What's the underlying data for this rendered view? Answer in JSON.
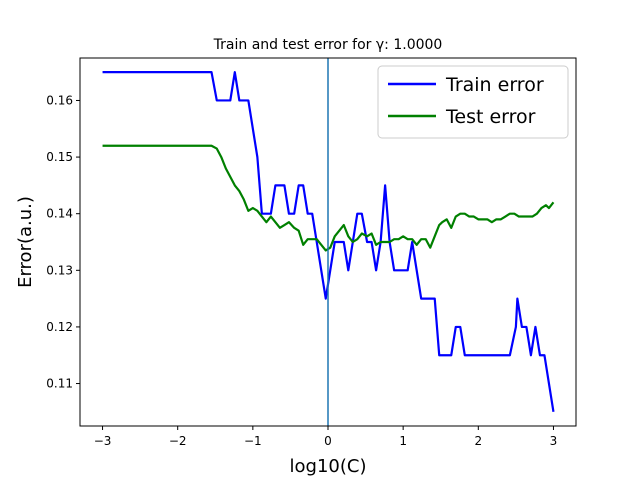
{
  "chart_data": {
    "type": "line",
    "title": "Train and test error for γ: 1.0000",
    "xlabel": "log10(C)",
    "ylabel": "Error(a.u.)",
    "xlim": [
      -3.3,
      3.3
    ],
    "ylim": [
      0.1025,
      0.1675
    ],
    "xticks": [
      -3,
      -2,
      -1,
      0,
      1,
      2,
      3
    ],
    "xtick_labels": [
      "−3",
      "−2",
      "−1",
      "0",
      "1",
      "2",
      "3"
    ],
    "yticks": [
      0.11,
      0.12,
      0.13,
      0.14,
      0.15,
      0.16
    ],
    "ytick_labels": [
      "0.11",
      "0.12",
      "0.13",
      "0.14",
      "0.15",
      "0.16"
    ],
    "legend_position": "top-right",
    "vline": {
      "x": 0,
      "color": "#1f77b4"
    },
    "series": [
      {
        "name": "Train error",
        "color": "#0000ff",
        "points": [
          [
            -3.0,
            0.165
          ],
          [
            -2.5,
            0.165
          ],
          [
            -2.0,
            0.165
          ],
          [
            -1.55,
            0.165
          ],
          [
            -1.48,
            0.16
          ],
          [
            -1.3,
            0.16
          ],
          [
            -1.24,
            0.165
          ],
          [
            -1.18,
            0.16
          ],
          [
            -1.06,
            0.16
          ],
          [
            -1.0,
            0.155
          ],
          [
            -0.94,
            0.15
          ],
          [
            -0.88,
            0.14
          ],
          [
            -0.76,
            0.14
          ],
          [
            -0.7,
            0.145
          ],
          [
            -0.58,
            0.145
          ],
          [
            -0.52,
            0.14
          ],
          [
            -0.45,
            0.14
          ],
          [
            -0.39,
            0.145
          ],
          [
            -0.33,
            0.145
          ],
          [
            -0.27,
            0.14
          ],
          [
            -0.21,
            0.14
          ],
          [
            -0.15,
            0.135
          ],
          [
            -0.09,
            0.13
          ],
          [
            -0.03,
            0.125
          ],
          [
            0.03,
            0.13
          ],
          [
            0.09,
            0.135
          ],
          [
            0.21,
            0.135
          ],
          [
            0.27,
            0.13
          ],
          [
            0.33,
            0.135
          ],
          [
            0.39,
            0.14
          ],
          [
            0.45,
            0.14
          ],
          [
            0.52,
            0.135
          ],
          [
            0.58,
            0.135
          ],
          [
            0.64,
            0.13
          ],
          [
            0.7,
            0.135
          ],
          [
            0.76,
            0.145
          ],
          [
            0.82,
            0.135
          ],
          [
            0.88,
            0.13
          ],
          [
            1.06,
            0.13
          ],
          [
            1.12,
            0.135
          ],
          [
            1.18,
            0.13
          ],
          [
            1.24,
            0.125
          ],
          [
            1.42,
            0.125
          ],
          [
            1.48,
            0.115
          ],
          [
            1.64,
            0.115
          ],
          [
            1.7,
            0.12
          ],
          [
            1.76,
            0.12
          ],
          [
            1.82,
            0.115
          ],
          [
            2.0,
            0.115
          ],
          [
            2.2,
            0.115
          ],
          [
            2.42,
            0.115
          ],
          [
            2.5,
            0.12
          ],
          [
            2.52,
            0.125
          ],
          [
            2.58,
            0.12
          ],
          [
            2.64,
            0.12
          ],
          [
            2.7,
            0.115
          ],
          [
            2.76,
            0.12
          ],
          [
            2.82,
            0.115
          ],
          [
            2.88,
            0.115
          ],
          [
            2.94,
            0.11
          ],
          [
            3.0,
            0.105
          ]
        ]
      },
      {
        "name": "Test error",
        "color": "#008000",
        "points": [
          [
            -3.0,
            0.152
          ],
          [
            -2.5,
            0.152
          ],
          [
            -2.0,
            0.152
          ],
          [
            -1.55,
            0.152
          ],
          [
            -1.48,
            0.1515
          ],
          [
            -1.42,
            0.15
          ],
          [
            -1.36,
            0.148
          ],
          [
            -1.3,
            0.1465
          ],
          [
            -1.24,
            0.145
          ],
          [
            -1.18,
            0.144
          ],
          [
            -1.12,
            0.1425
          ],
          [
            -1.06,
            0.1405
          ],
          [
            -1.0,
            0.141
          ],
          [
            -0.94,
            0.1405
          ],
          [
            -0.88,
            0.1395
          ],
          [
            -0.82,
            0.1385
          ],
          [
            -0.76,
            0.1395
          ],
          [
            -0.7,
            0.1385
          ],
          [
            -0.64,
            0.1375
          ],
          [
            -0.58,
            0.138
          ],
          [
            -0.52,
            0.1385
          ],
          [
            -0.45,
            0.1375
          ],
          [
            -0.39,
            0.137
          ],
          [
            -0.33,
            0.1345
          ],
          [
            -0.27,
            0.1355
          ],
          [
            -0.21,
            0.1355
          ],
          [
            -0.15,
            0.1355
          ],
          [
            -0.09,
            0.1345
          ],
          [
            -0.03,
            0.1335
          ],
          [
            0.03,
            0.134
          ],
          [
            0.09,
            0.136
          ],
          [
            0.15,
            0.137
          ],
          [
            0.21,
            0.138
          ],
          [
            0.27,
            0.136
          ],
          [
            0.33,
            0.135
          ],
          [
            0.39,
            0.1355
          ],
          [
            0.45,
            0.1365
          ],
          [
            0.52,
            0.136
          ],
          [
            0.58,
            0.1365
          ],
          [
            0.64,
            0.1345
          ],
          [
            0.7,
            0.135
          ],
          [
            0.76,
            0.135
          ],
          [
            0.82,
            0.135
          ],
          [
            0.88,
            0.1355
          ],
          [
            0.94,
            0.1355
          ],
          [
            1.0,
            0.136
          ],
          [
            1.06,
            0.1355
          ],
          [
            1.12,
            0.1355
          ],
          [
            1.18,
            0.1345
          ],
          [
            1.24,
            0.1355
          ],
          [
            1.3,
            0.1355
          ],
          [
            1.36,
            0.134
          ],
          [
            1.42,
            0.136
          ],
          [
            1.48,
            0.138
          ],
          [
            1.52,
            0.1385
          ],
          [
            1.58,
            0.139
          ],
          [
            1.64,
            0.1375
          ],
          [
            1.7,
            0.1395
          ],
          [
            1.76,
            0.14
          ],
          [
            1.82,
            0.14
          ],
          [
            1.88,
            0.1395
          ],
          [
            1.94,
            0.1395
          ],
          [
            2.0,
            0.139
          ],
          [
            2.06,
            0.139
          ],
          [
            2.12,
            0.139
          ],
          [
            2.18,
            0.1385
          ],
          [
            2.24,
            0.139
          ],
          [
            2.3,
            0.139
          ],
          [
            2.36,
            0.1395
          ],
          [
            2.42,
            0.14
          ],
          [
            2.48,
            0.14
          ],
          [
            2.54,
            0.1395
          ],
          [
            2.6,
            0.1395
          ],
          [
            2.66,
            0.1395
          ],
          [
            2.72,
            0.1395
          ],
          [
            2.78,
            0.14
          ],
          [
            2.84,
            0.141
          ],
          [
            2.9,
            0.1415
          ],
          [
            2.94,
            0.141
          ],
          [
            3.0,
            0.142
          ]
        ]
      }
    ]
  }
}
